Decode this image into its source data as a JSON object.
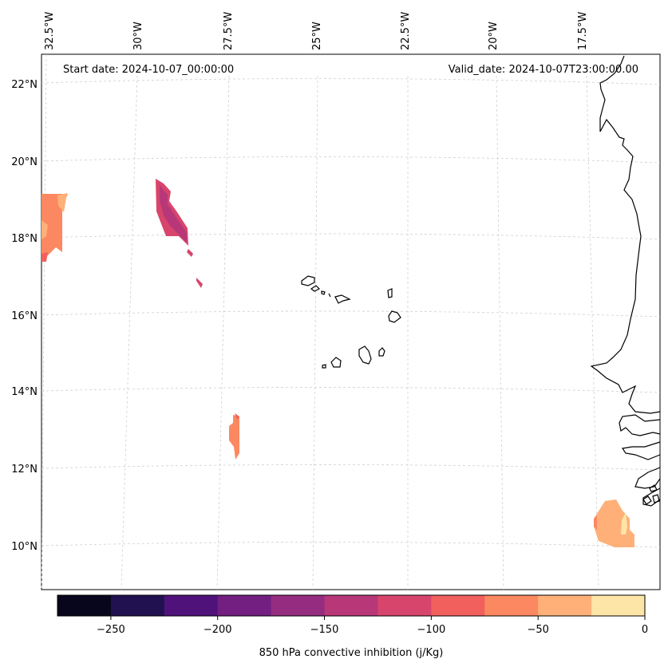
{
  "header": {
    "start_date": "Start date: 2024-10-07_00:00:00",
    "valid_date": "Valid_date: 2024-10-07T23:00:00.00"
  },
  "lon_labels": [
    "32.5°W",
    "30°W",
    "27.5°W",
    "25°W",
    "22.5°W",
    "20°W",
    "17.5°W"
  ],
  "lat_labels": [
    "22°N",
    "20°N",
    "18°N",
    "16°N",
    "14°N",
    "12°N",
    "10°N"
  ],
  "colorbar": {
    "label": "850 hPa convective inhibition (j/Kg)",
    "ticks": [
      "−250",
      "−200",
      "−150",
      "−100",
      "−50",
      "0"
    ],
    "levels": [
      -275,
      -250,
      -225,
      -200,
      -175,
      -150,
      -125,
      -100,
      -75,
      -50,
      -25,
      0
    ],
    "colors": [
      "#07061c",
      "#221150",
      "#4f127b",
      "#721f81",
      "#952c80",
      "#b73779",
      "#d8456c",
      "#f1605d",
      "#fb8861",
      "#feb078",
      "#fde5a7"
    ]
  }
}
